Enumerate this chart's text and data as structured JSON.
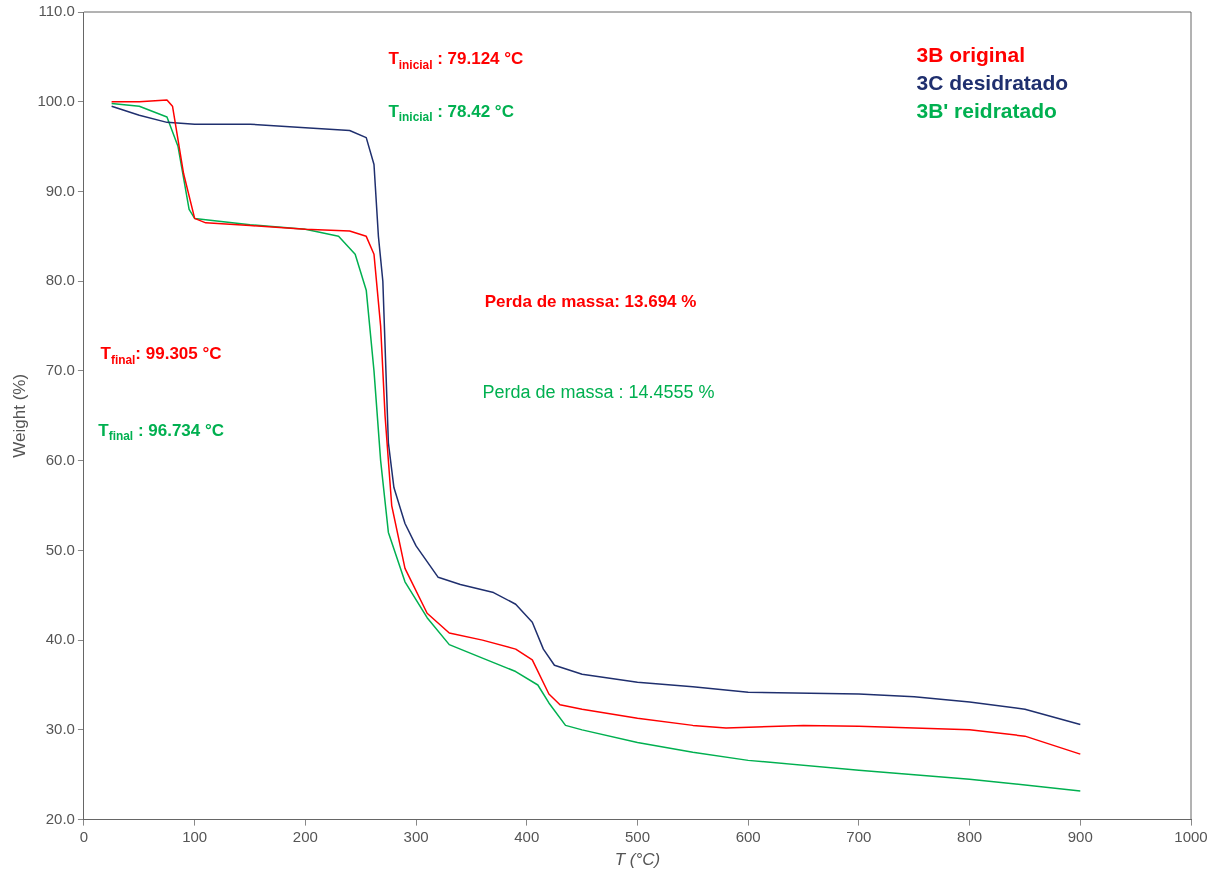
{
  "chart_data": {
    "type": "line",
    "xlabel": "T (°C)",
    "ylabel": "Weight (%)",
    "xlim": [
      0,
      1000
    ],
    "xticks": [
      0,
      100,
      200,
      300,
      400,
      500,
      600,
      700,
      800,
      900,
      1000
    ],
    "ylim": [
      20,
      110
    ],
    "yticks": [
      {
        "value": 20,
        "label": "20.0"
      },
      {
        "value": 30,
        "label": "30.0"
      },
      {
        "value": 40,
        "label": "40.0"
      },
      {
        "value": 50,
        "label": "50.0"
      },
      {
        "value": 60,
        "label": "60.0"
      },
      {
        "value": 70,
        "label": "70.0"
      },
      {
        "value": 80,
        "label": "80.0"
      },
      {
        "value": 90,
        "label": "90.0"
      },
      {
        "value": 100,
        "label": "100.0"
      },
      {
        "value": 110,
        "label": "110.0"
      }
    ],
    "grid": false,
    "legend": "top right",
    "marker": "none",
    "line_style": "solid",
    "series": [
      {
        "name": "3B original",
        "color": "#ff0000",
        "x": [
          25,
          50,
          75,
          80,
          90,
          100,
          110,
          150,
          200,
          240,
          255,
          262,
          268,
          272,
          278,
          290,
          310,
          330,
          360,
          390,
          405,
          420,
          430,
          450,
          500,
          550,
          580,
          650,
          700,
          800,
          850,
          900
        ],
        "values": [
          100,
          100,
          100.2,
          99.5,
          92,
          87,
          86.5,
          86.2,
          85.8,
          85.6,
          85,
          83,
          75,
          65,
          55,
          48,
          43,
          40.8,
          40,
          39,
          37.8,
          34,
          32.8,
          32.3,
          31.3,
          30.5,
          30.2,
          30.5,
          30.4,
          30,
          29.3,
          27.3
        ]
      },
      {
        "name": "3C desidratado",
        "color": "#1f2f6e",
        "x": [
          25,
          50,
          75,
          100,
          150,
          200,
          240,
          255,
          262,
          266,
          270,
          275,
          280,
          290,
          300,
          320,
          340,
          370,
          390,
          405,
          415,
          425,
          450,
          500,
          550,
          600,
          700,
          750,
          800,
          850,
          900
        ],
        "values": [
          99.5,
          98.5,
          97.7,
          97.5,
          97.5,
          97.1,
          96.8,
          96,
          93,
          85,
          80,
          62,
          57,
          53,
          50.5,
          47,
          46.2,
          45.3,
          44,
          42,
          39,
          37.2,
          36.2,
          35.3,
          34.8,
          34.2,
          34,
          33.7,
          33.1,
          32.3,
          30.6
        ]
      },
      {
        "name": "3B' reidratado",
        "color": "#00b050",
        "x": [
          25,
          50,
          75,
          85,
          95,
          100,
          150,
          200,
          230,
          245,
          255,
          262,
          268,
          275,
          290,
          310,
          330,
          360,
          390,
          410,
          420,
          435,
          450,
          500,
          550,
          600,
          700,
          800,
          900
        ],
        "values": [
          99.8,
          99.5,
          98.3,
          95,
          88,
          87,
          86.3,
          85.8,
          85,
          83,
          79,
          70,
          60,
          52,
          46.5,
          42.5,
          39.5,
          38,
          36.5,
          35,
          33,
          30.5,
          30,
          28.6,
          27.5,
          26.6,
          25.5,
          24.5,
          23.2
        ]
      }
    ],
    "annotations": [
      "T$_{inicial}$ : 79.124 °C",
      "T$_{inicial}$ : 78.42 °C",
      "Perda de massa: 13.694 %",
      "Perda de massa : 14.4555 %",
      "T$_{final}$: 99.305 °C",
      "T$_{final}$ : 96.734 °C"
    ]
  }
}
